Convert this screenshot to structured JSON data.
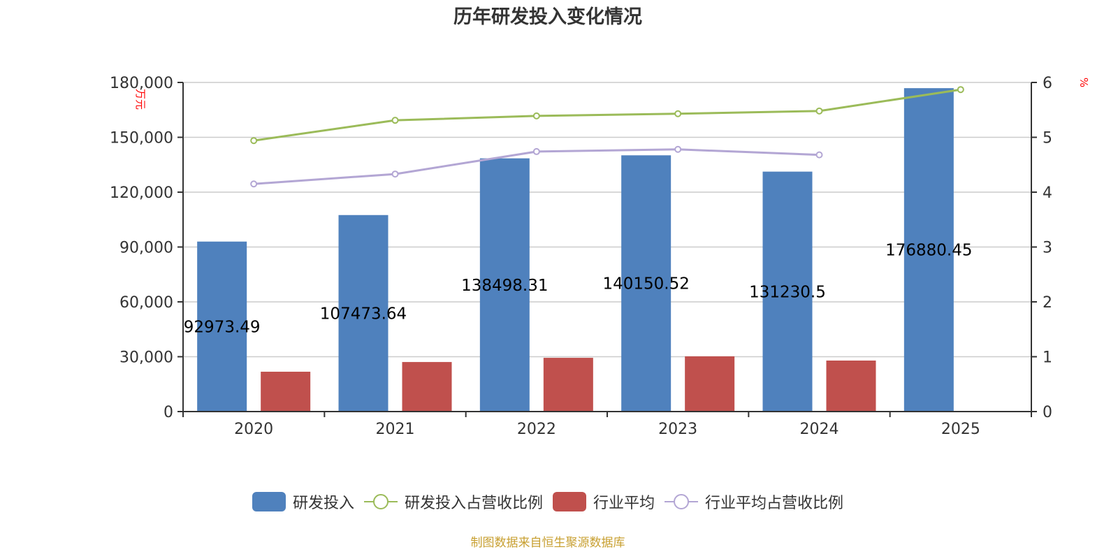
{
  "title": "历年研发投入变化情况",
  "footer": "制图数据来自恒生聚源数据库",
  "colors": {
    "rd_bar": "#4f81bd",
    "industry_bar": "#c0504d",
    "rd_ratio_line": "#9bbb59",
    "industry_ratio_line": "#b3a6d4",
    "axis_unit": "#ff0000",
    "grid": "#cccccc",
    "axis": "#333333",
    "footer": "#c8a032"
  },
  "legend": [
    {
      "label": "研发投入",
      "type": "bar",
      "color": "#4f81bd"
    },
    {
      "label": "研发投入占营收比例",
      "type": "line",
      "color": "#9bbb59"
    },
    {
      "label": "行业平均",
      "type": "bar",
      "color": "#c0504d"
    },
    {
      "label": "行业平均占营收比例",
      "type": "line",
      "color": "#b3a6d4"
    }
  ],
  "chart_data": {
    "type": "bar",
    "title": "历年研发投入变化情况",
    "categories": [
      "2020",
      "2021",
      "2022",
      "2023",
      "2024",
      "2025"
    ],
    "ylabel": "万元",
    "ylabel_right": "%",
    "ylim": [
      0,
      180000
    ],
    "ylim_right": [
      0,
      6
    ],
    "yticks": [
      "0",
      "30,000",
      "60,000",
      "90,000",
      "120,000",
      "150,000",
      "180,000"
    ],
    "yticks_right": [
      "0",
      "1",
      "2",
      "3",
      "4",
      "5",
      "6"
    ],
    "grid": true,
    "legend_position": "bottom",
    "series": [
      {
        "name": "研发投入",
        "type": "bar",
        "axis": "left",
        "values": [
          92973.49,
          107473.64,
          138498.31,
          140150.52,
          131230.5,
          176880.45
        ],
        "labels": [
          "92973.49",
          "107473.64",
          "138498.31",
          "140150.52",
          "131230.5",
          "176880.45"
        ]
      },
      {
        "name": "行业平均",
        "type": "bar",
        "axis": "left",
        "values": [
          21800,
          27100,
          29400,
          30200,
          27900,
          null
        ]
      },
      {
        "name": "研发投入占营收比例",
        "type": "line",
        "axis": "right",
        "values": [
          4.94,
          5.31,
          5.39,
          5.43,
          5.48,
          5.87
        ]
      },
      {
        "name": "行业平均占营收比例",
        "type": "line",
        "axis": "right",
        "values": [
          4.15,
          4.33,
          4.74,
          4.78,
          4.68,
          null
        ]
      }
    ]
  }
}
